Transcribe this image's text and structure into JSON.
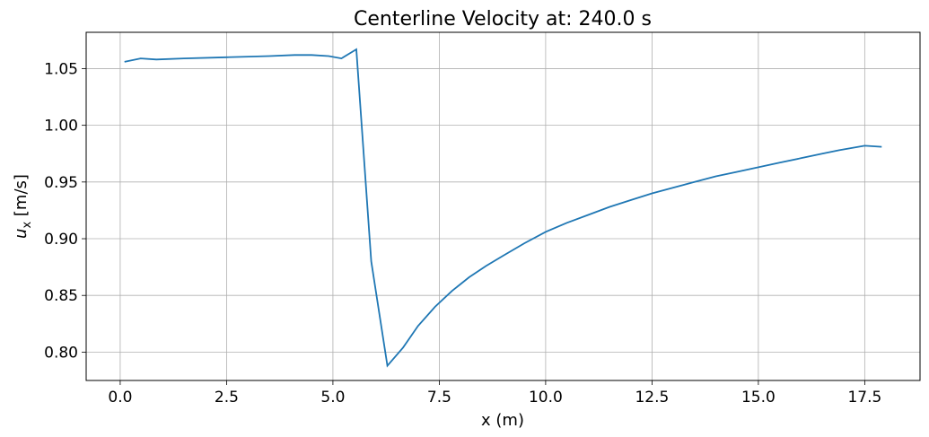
{
  "chart_data": {
    "type": "line",
    "title": "Centerline Velocity at: 240.0 s",
    "xlabel": "x (m)",
    "ylabel_symbol": "u",
    "ylabel_subscript": "x",
    "ylabel_unit": " [m/s]",
    "xlim": [
      -0.8,
      18.8
    ],
    "ylim": [
      0.775,
      1.082
    ],
    "x_ticks": [
      0.0,
      2.5,
      5.0,
      7.5,
      10.0,
      12.5,
      15.0,
      17.5
    ],
    "x_tick_labels": [
      "0.0",
      "2.5",
      "5.0",
      "7.5",
      "10.0",
      "12.5",
      "15.0",
      "17.5"
    ],
    "y_ticks": [
      0.8,
      0.85,
      0.9,
      0.95,
      1.0,
      1.05
    ],
    "y_tick_labels": [
      "0.80",
      "0.85",
      "0.90",
      "0.95",
      "1.00",
      "1.05"
    ],
    "grid": true,
    "line_color": "#1f77b4",
    "series": [
      {
        "x": [
          0.1,
          0.48,
          0.85,
          1.5,
          2.5,
          3.5,
          4.1,
          4.5,
          4.9,
          5.2,
          5.55,
          5.9,
          6.28,
          6.65,
          7.0,
          7.4,
          7.8,
          8.2,
          8.6,
          9.0,
          9.5,
          10.0,
          10.5,
          11.0,
          11.5,
          12.0,
          12.5,
          13.0,
          13.5,
          14.0,
          14.5,
          15.0,
          15.5,
          16.0,
          16.5,
          16.9,
          17.5,
          17.9
        ],
        "y": [
          1.056,
          1.059,
          1.058,
          1.059,
          1.06,
          1.061,
          1.062,
          1.062,
          1.061,
          1.059,
          1.067,
          0.88,
          0.788,
          0.804,
          0.823,
          0.84,
          0.854,
          0.866,
          0.876,
          0.885,
          0.896,
          0.906,
          0.914,
          0.921,
          0.928,
          0.934,
          0.94,
          0.945,
          0.95,
          0.955,
          0.959,
          0.963,
          0.967,
          0.971,
          0.975,
          0.978,
          0.982,
          0.981
        ]
      }
    ]
  }
}
